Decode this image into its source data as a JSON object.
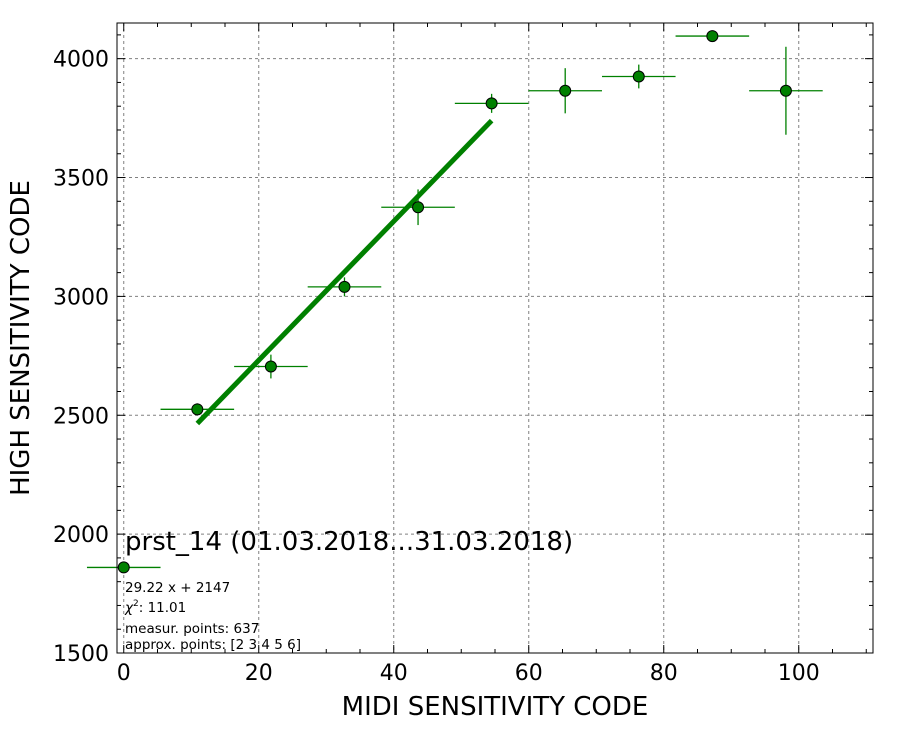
{
  "chart_data": {
    "type": "scatter",
    "title": "",
    "xlabel": "MIDI SENSITIVITY CODE",
    "ylabel": "HIGH SENSITIVITY CODE",
    "xlim": [
      -1,
      111
    ],
    "ylim": [
      1500,
      4150
    ],
    "grid": true,
    "x_ticks": [
      0,
      20,
      40,
      60,
      80,
      100
    ],
    "y_ticks": [
      1500,
      2000,
      2500,
      3000,
      3500,
      4000
    ],
    "colors": {
      "marker": "#008000",
      "errorbar": "#008000",
      "fit_line": "#008000",
      "grid": "#808080"
    },
    "series": [
      {
        "x": [
          0,
          10.9,
          21.8,
          32.7,
          43.6,
          54.5,
          65.4,
          76.3,
          87.2,
          98.1
        ],
        "y": [
          1860,
          2525,
          2705,
          3040,
          3375,
          3812,
          3865,
          3925,
          4095,
          3865
        ],
        "x_err": [
          5.45,
          5.45,
          5.45,
          5.45,
          5.45,
          5.45,
          5.45,
          5.45,
          5.45,
          5.45
        ],
        "y_err": [
          0,
          25,
          50,
          40,
          75,
          40,
          95,
          50,
          0,
          185
        ]
      }
    ],
    "fit_line": {
      "slope": 29.22,
      "intercept": 2147,
      "x_range": [
        10.9,
        54.5
      ]
    },
    "annotations": {
      "label": "prst_14 (01.03.2018...31.03.2018)",
      "equation": "29.22 x + 2147",
      "chi2_prefix": "χ",
      "chi2_sup": "2",
      "chi2_value": ": 11.01",
      "measur_points": "measur. points: 637",
      "approx_points": "approx. points: [2 3 4 5 6]"
    }
  }
}
